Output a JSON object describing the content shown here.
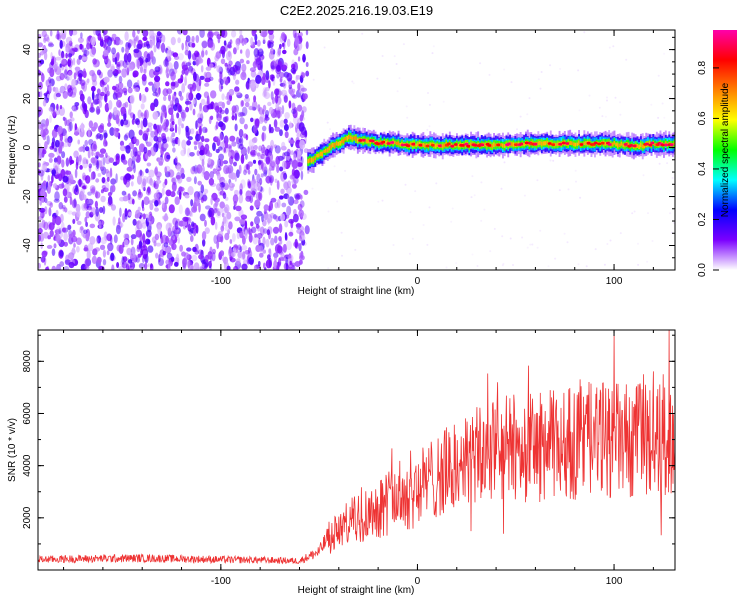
{
  "title": "C2E2.2025.216.19.03.E19",
  "chart_data": [
    {
      "type": "heatmap",
      "xlabel": "Height of straight line (km)",
      "ylabel": "Frequency (Hz)",
      "xlim": [
        -193,
        131
      ],
      "ylim": [
        -50,
        48
      ],
      "xticks": [
        "-100",
        "0",
        "100"
      ],
      "xtick_values": [
        -100,
        0,
        100
      ],
      "yticks": [
        "40",
        "20",
        "0",
        "-20",
        "-40"
      ],
      "ytick_values": [
        40,
        20,
        0,
        -20,
        -40
      ],
      "noise_region_x": [
        -193,
        -56
      ],
      "signal_track": {
        "x": [
          -56,
          -50,
          -45,
          -40,
          -35,
          -30,
          -20,
          0,
          20,
          40,
          60,
          80,
          100,
          110,
          120,
          131
        ],
        "y": [
          -6,
          -3,
          0,
          2,
          4,
          3,
          2,
          1,
          1,
          1,
          1.5,
          1.5,
          1.5,
          0.5,
          1.5,
          1.5
        ]
      },
      "colorbar": {
        "label": "Normalized spectral amplitude",
        "range": [
          0,
          0.95
        ],
        "ticks": [
          "0.0",
          "0.2",
          "0.4",
          "0.6",
          "0.8"
        ],
        "tick_values": [
          0.0,
          0.2,
          0.4,
          0.6,
          0.8
        ],
        "colors": [
          "#ffffff",
          "#7b00ff",
          "#0000ff",
          "#00ffff",
          "#00ff00",
          "#ffff00",
          "#ff8000",
          "#ff0000",
          "#ff00aa"
        ]
      }
    },
    {
      "type": "line",
      "xlabel": "Height of straight line (km)",
      "ylabel": "SNR (10 * v/v)",
      "xlim": [
        -193,
        131
      ],
      "ylim": [
        0,
        9200
      ],
      "xticks": [
        "-100",
        "0",
        "100"
      ],
      "xtick_values": [
        -100,
        0,
        100
      ],
      "yticks": [
        "2000",
        "4000",
        "6000",
        "8000"
      ],
      "ytick_values": [
        2000,
        4000,
        6000,
        8000
      ],
      "color": "#ee3333",
      "series": [
        {
          "x": [
            -193,
            -180,
            -160,
            -140,
            -120,
            -100,
            -80,
            -60,
            -50,
            -45,
            -40,
            -35,
            -30,
            -20,
            -10,
            0,
            10,
            20,
            30,
            40,
            50,
            60,
            70,
            80,
            90,
            100,
            110,
            120,
            131
          ],
          "values": [
            400,
            420,
            440,
            450,
            430,
            400,
            380,
            350,
            700,
            1300,
            1500,
            1800,
            2000,
            2400,
            2800,
            3200,
            3600,
            4000,
            4300,
            4600,
            4700,
            4700,
            4800,
            4900,
            5000,
            5000,
            4900,
            5000,
            5000
          ]
        }
      ]
    }
  ]
}
